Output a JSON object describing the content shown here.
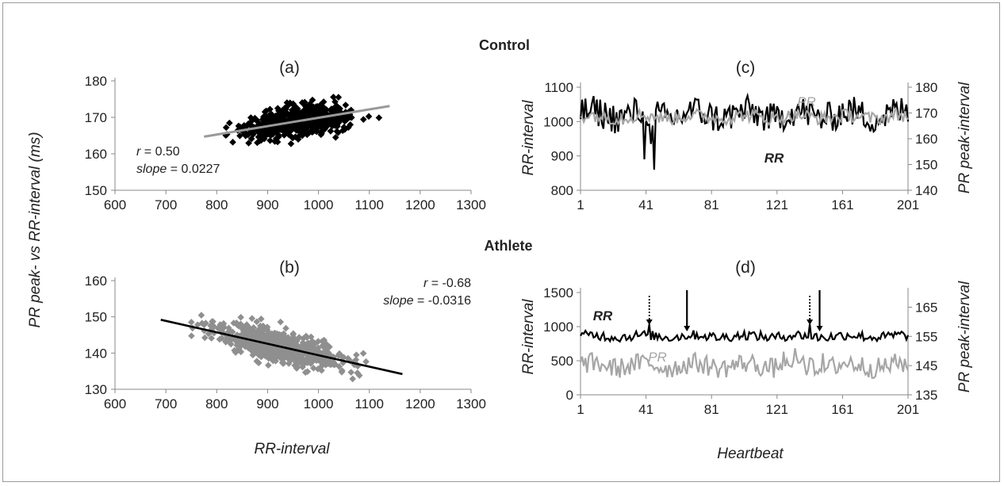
{
  "headers": {
    "control": "Control",
    "athlete": "Athlete"
  },
  "labels": {
    "ylabel_left": "PR peak- vs RR-interval (ms)",
    "xlabel_left": "RR-interval",
    "xlabel_right": "Heartbeat",
    "ylabel_rr": "RR-interval",
    "ylabel_pr": "PR peak-interval"
  },
  "colors": {
    "control_scatter": "#000000",
    "athlete_scatter": "#8f8f8f",
    "rr_line": "#000000",
    "pr_line": "#a6a6a6",
    "fit_control": "#9a9a9a",
    "fit_athlete": "#000000"
  },
  "chart_data": [
    {
      "id": "a",
      "panel_label": "(a)",
      "type": "scatter",
      "xlim": [
        600,
        1300
      ],
      "ylim": [
        150,
        180
      ],
      "xticks": [
        "600",
        "700",
        "800",
        "900",
        "1000",
        "1100",
        "1200",
        "1300"
      ],
      "yticks": [
        "150",
        "160",
        "170",
        "180"
      ],
      "point_cloud": {
        "x_range": [
          775,
          1140
        ],
        "y_range": [
          162,
          179
        ],
        "approx_points": 700
      },
      "fit_line": {
        "x": [
          775,
          1140
        ],
        "y": [
          164.7,
          173.1
        ]
      },
      "stats": {
        "r_label": "r",
        "r_value": " = 0.50",
        "slope_label": "slope",
        "slope_value": " = 0.0227"
      }
    },
    {
      "id": "b",
      "panel_label": "(b)",
      "type": "scatter",
      "xlim": [
        600,
        1300
      ],
      "ylim": [
        130,
        160
      ],
      "xticks": [
        "600",
        "700",
        "800",
        "900",
        "1000",
        "1100",
        "1200",
        "1300"
      ],
      "yticks": [
        "130",
        "140",
        "150",
        "160"
      ],
      "point_cloud": {
        "x_range": [
          690,
          1160
        ],
        "y_range": [
          132,
          154
        ],
        "approx_points": 700
      },
      "fit_line": {
        "x": [
          690,
          1165
        ],
        "y": [
          149.2,
          134.2
        ]
      },
      "stats": {
        "r_label": "r",
        "r_value": " = -0.68",
        "slope_label": "slope",
        "slope_value": " = -0.0316"
      }
    },
    {
      "id": "c",
      "panel_label": "(c)",
      "type": "line",
      "xlim": [
        1,
        201
      ],
      "xticks": [
        "1",
        "41",
        "81",
        "121",
        "161",
        "201"
      ],
      "ylim_left": [
        800,
        1100
      ],
      "yticks_left": [
        "800",
        "900",
        "1000",
        "1100"
      ],
      "ylim_right": [
        140,
        180
      ],
      "yticks_right": [
        "140",
        "150",
        "160",
        "170",
        "180"
      ],
      "series": [
        {
          "name": "RR",
          "axis": "left",
          "mean": 1020,
          "amp": 45,
          "dips": [
            [
              46,
              860
            ],
            [
              40,
              890
            ],
            [
              44,
              935
            ]
          ]
        },
        {
          "name": "PR",
          "axis": "right",
          "mean": 168.5,
          "amp": 2.5
        }
      ]
    },
    {
      "id": "d",
      "panel_label": "(d)",
      "type": "line",
      "xlim": [
        1,
        201
      ],
      "xticks": [
        "1",
        "41",
        "81",
        "121",
        "161",
        "201"
      ],
      "ylim_left": [
        0,
        1500
      ],
      "yticks_left": [
        "0",
        "500",
        "1000",
        "1500"
      ],
      "ylim_right": [
        135,
        170
      ],
      "yticks_right": [
        "135",
        "145",
        "155",
        "165"
      ],
      "series": [
        {
          "name": "RR",
          "axis": "left",
          "mean": 860,
          "amp": 70
        },
        {
          "name": "PR",
          "axis": "right",
          "mean": 145,
          "amp": 3.5
        }
      ],
      "arrows": [
        {
          "x": 43,
          "style": "dotted"
        },
        {
          "x": 66,
          "style": "solid"
        },
        {
          "x": 141,
          "style": "dotted"
        },
        {
          "x": 147,
          "style": "solid"
        }
      ]
    }
  ]
}
